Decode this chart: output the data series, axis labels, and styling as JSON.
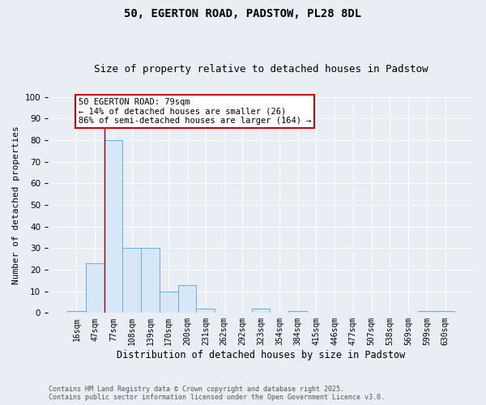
{
  "title1": "50, EGERTON ROAD, PADSTOW, PL28 8DL",
  "title2": "Size of property relative to detached houses in Padstow",
  "xlabel": "Distribution of detached houses by size in Padstow",
  "ylabel": "Number of detached properties",
  "bins": [
    "16sqm",
    "47sqm",
    "77sqm",
    "108sqm",
    "139sqm",
    "170sqm",
    "200sqm",
    "231sqm",
    "262sqm",
    "292sqm",
    "323sqm",
    "354sqm",
    "384sqm",
    "415sqm",
    "446sqm",
    "477sqm",
    "507sqm",
    "538sqm",
    "569sqm",
    "599sqm",
    "630sqm"
  ],
  "values": [
    1,
    23,
    80,
    30,
    30,
    10,
    13,
    2,
    0,
    0,
    2,
    0,
    1,
    0,
    0,
    0,
    0,
    0,
    0,
    1,
    1
  ],
  "bar_color": "#d6e8f7",
  "bar_edge_color": "#6baed6",
  "vline_x": 1.5,
  "vline_color": "#8b0000",
  "annotation_text": "50 EGERTON ROAD: 79sqm\n← 14% of detached houses are smaller (26)\n86% of semi-detached houses are larger (164) →",
  "annotation_box_color": "#ffffff",
  "annotation_box_edge_color": "#cc0000",
  "ylim": [
    0,
    100
  ],
  "yticks": [
    0,
    10,
    20,
    30,
    40,
    50,
    60,
    70,
    80,
    90,
    100
  ],
  "bg_color": "#e8eef4",
  "grid_color": "#ffffff",
  "footnote": "Contains HM Land Registry data © Crown copyright and database right 2025.\nContains public sector information licensed under the Open Government Licence v3.0.",
  "title_fontsize": 10,
  "subtitle_fontsize": 9,
  "tick_fontsize": 7,
  "ylabel_fontsize": 8,
  "xlabel_fontsize": 8.5,
  "annot_fontsize": 7.5
}
